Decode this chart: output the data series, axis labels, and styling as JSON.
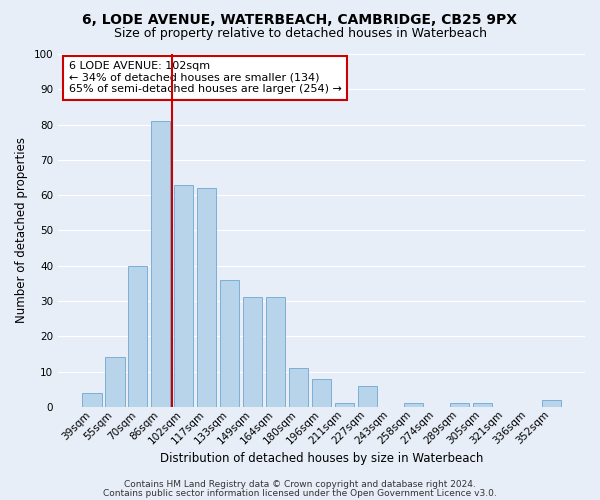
{
  "title": "6, LODE AVENUE, WATERBEACH, CAMBRIDGE, CB25 9PX",
  "subtitle": "Size of property relative to detached houses in Waterbeach",
  "xlabel": "Distribution of detached houses by size in Waterbeach",
  "ylabel": "Number of detached properties",
  "bar_labels": [
    "39sqm",
    "55sqm",
    "70sqm",
    "86sqm",
    "102sqm",
    "117sqm",
    "133sqm",
    "149sqm",
    "164sqm",
    "180sqm",
    "196sqm",
    "211sqm",
    "227sqm",
    "243sqm",
    "258sqm",
    "274sqm",
    "289sqm",
    "305sqm",
    "321sqm",
    "336sqm",
    "352sqm"
  ],
  "bar_values": [
    4,
    14,
    40,
    81,
    63,
    62,
    36,
    31,
    31,
    11,
    8,
    1,
    6,
    0,
    1,
    0,
    1,
    1,
    0,
    0,
    2
  ],
  "bar_color": "#b8d4ea",
  "bar_edge_color": "#7bafd4",
  "vline_color": "#cc0000",
  "ylim": [
    0,
    100
  ],
  "annotation_title": "6 LODE AVENUE: 102sqm",
  "annotation_line1": "← 34% of detached houses are smaller (134)",
  "annotation_line2": "65% of semi-detached houses are larger (254) →",
  "annotation_box_color": "#ffffff",
  "annotation_box_edge": "#cc0000",
  "footer1": "Contains HM Land Registry data © Crown copyright and database right 2024.",
  "footer2": "Contains public sector information licensed under the Open Government Licence v3.0.",
  "bg_color": "#e8eef8",
  "grid_color": "#ffffff",
  "title_fontsize": 10,
  "subtitle_fontsize": 9,
  "axis_label_fontsize": 8.5,
  "tick_fontsize": 7.5,
  "footer_fontsize": 6.5,
  "annotation_fontsize": 8
}
